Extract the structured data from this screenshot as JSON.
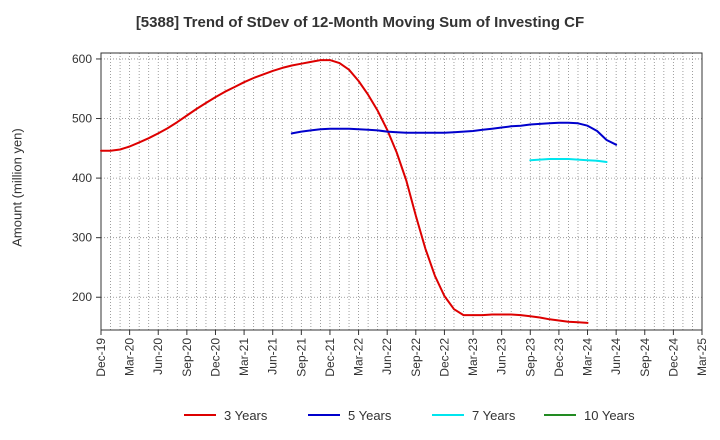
{
  "chart_data": {
    "type": "line",
    "title": "[5388]  Trend of StDev of 12-Month Moving Sum of Investing CF",
    "xlabel": "",
    "ylabel": "Amount (million yen)",
    "ylim": [
      145,
      610
    ],
    "yticks": [
      200,
      300,
      400,
      500,
      600
    ],
    "x_tick_labels": [
      "Dec-19",
      "Mar-20",
      "Jun-20",
      "Sep-20",
      "Dec-20",
      "Mar-21",
      "Jun-21",
      "Sep-21",
      "Dec-21",
      "Mar-22",
      "Jun-22",
      "Sep-22",
      "Dec-22",
      "Mar-23",
      "Jun-23",
      "Sep-23",
      "Dec-23",
      "Mar-24",
      "Jun-24",
      "Sep-24",
      "Dec-24",
      "Mar-25"
    ],
    "grid": true,
    "legend": "bottom",
    "series": [
      {
        "name": "3 Years",
        "color": "#dd0000",
        "x_start": "Dec-19",
        "values": [
          446,
          446,
          448,
          453,
          460,
          467,
          475,
          484,
          494,
          505,
          516,
          526,
          536,
          545,
          553,
          561,
          568,
          574,
          580,
          585,
          589,
          592,
          595,
          598,
          598,
          593,
          582,
          563,
          540,
          513,
          481,
          443,
          396,
          337,
          282,
          236,
          202,
          180,
          170,
          170,
          170,
          171,
          171,
          171,
          170,
          168,
          166,
          163,
          161,
          159,
          158,
          157
        ]
      },
      {
        "name": "5 Years",
        "color": "#0000cc",
        "x_start": "Aug-21",
        "values": [
          475,
          478,
          480,
          482,
          483,
          483,
          483,
          482,
          481,
          480,
          478,
          477,
          476,
          476,
          476,
          476,
          476,
          477,
          478,
          479,
          481,
          483,
          485,
          487,
          488,
          490,
          491,
          492,
          493,
          493,
          492,
          488,
          479,
          464,
          456
        ]
      },
      {
        "name": "7 Years",
        "color": "#00e5ee",
        "x_start": "Sep-23",
        "values": [
          430,
          431,
          432,
          432,
          432,
          431,
          430,
          429,
          427
        ]
      },
      {
        "name": "10 Years",
        "color": "#228b22",
        "x_start": "Dec-19",
        "values": []
      }
    ]
  }
}
